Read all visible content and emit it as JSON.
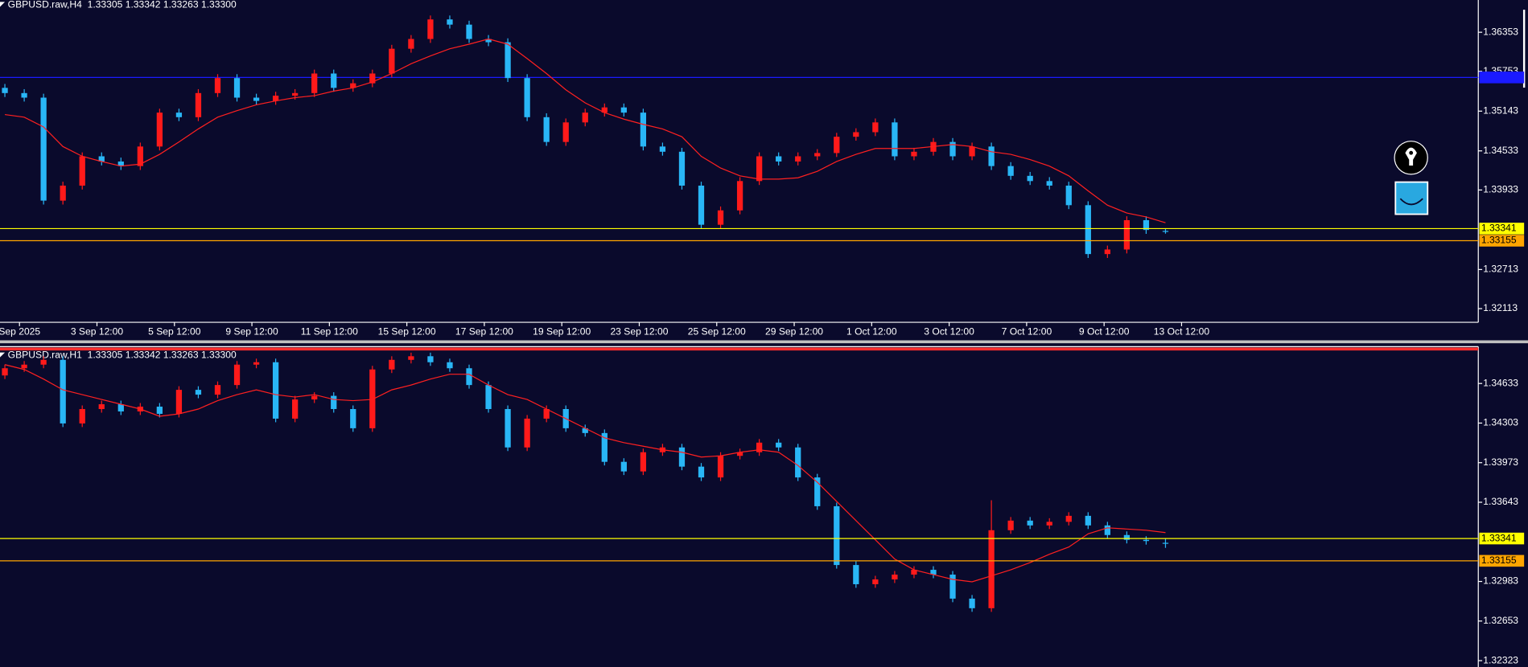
{
  "panels": [
    {
      "header": "GBPUSD.raw,H4  1.33305 1.33342 1.33263 1.33300",
      "ylim": [
        1.31903,
        1.36848
      ],
      "yticks": [
        1.36353,
        1.35753,
        1.35143,
        1.34533,
        1.33933,
        1.32713,
        1.32113
      ],
      "xlabels": [
        "Sep 2025",
        "3 Sep 12:00",
        "5 Sep 12:00",
        "9 Sep 12:00",
        "11 Sep 12:00",
        "15 Sep 12:00",
        "17 Sep 12:00",
        "19 Sep 12:00",
        "23 Sep 12:00",
        "25 Sep 12:00",
        "29 Sep 12:00",
        "1 Oct 12:00",
        "3 Oct 12:00",
        "7 Oct 12:00",
        "9 Oct 12:00",
        "13 Oct 12:00"
      ],
      "levels": [
        {
          "price": 1.33341,
          "color": "#ffff00"
        },
        {
          "price": 1.33155,
          "color": "#ffa500"
        }
      ],
      "lines": [
        {
          "price": 1.3566,
          "color": "#1a1aff"
        }
      ],
      "up_color": "#ff1a1a",
      "down_color": "#29b6f6",
      "ma_color": "#ff2020",
      "open": [
        1.355,
        1.3542,
        1.3535,
        1.3377,
        1.34,
        1.3445,
        1.3437,
        1.343,
        1.346,
        1.3512,
        1.3505,
        1.3542,
        1.3565,
        1.3535,
        1.353,
        1.3538,
        1.3542,
        1.3572,
        1.355,
        1.3557,
        1.3572,
        1.361,
        1.3625,
        1.3655,
        1.3647,
        1.3625,
        1.362,
        1.3565,
        1.3505,
        1.3467,
        1.3497,
        1.3512,
        1.352,
        1.3512,
        1.346,
        1.3452,
        1.34,
        1.334,
        1.3362,
        1.3407,
        1.3445,
        1.3437,
        1.3445,
        1.345,
        1.3475,
        1.3482,
        1.3497,
        1.3445,
        1.3452,
        1.3467,
        1.3445,
        1.346,
        1.343,
        1.3415,
        1.3407,
        1.34,
        1.337,
        1.3295,
        1.3302,
        1.3347,
        1.33305
      ],
      "high": [
        1.3556,
        1.3548,
        1.3541,
        1.3406,
        1.3451,
        1.3451,
        1.3443,
        1.3466,
        1.3518,
        1.3518,
        1.3548,
        1.3571,
        1.3571,
        1.3541,
        1.3544,
        1.3548,
        1.3578,
        1.3578,
        1.3563,
        1.3578,
        1.3616,
        1.3631,
        1.3661,
        1.3661,
        1.3653,
        1.3631,
        1.3626,
        1.3571,
        1.3511,
        1.3503,
        1.3518,
        1.3526,
        1.3526,
        1.3518,
        1.3466,
        1.3458,
        1.3406,
        1.3368,
        1.3413,
        1.3451,
        1.3451,
        1.3451,
        1.3456,
        1.3481,
        1.3488,
        1.3503,
        1.3503,
        1.3458,
        1.3473,
        1.3473,
        1.3466,
        1.3466,
        1.3436,
        1.3421,
        1.3413,
        1.3406,
        1.3376,
        1.3308,
        1.3353,
        1.3353,
        1.33342
      ],
      "low": [
        1.3536,
        1.3529,
        1.3371,
        1.3371,
        1.3394,
        1.3431,
        1.3424,
        1.3424,
        1.3454,
        1.3499,
        1.3499,
        1.3536,
        1.3529,
        1.3524,
        1.3524,
        1.3532,
        1.3536,
        1.3544,
        1.3544,
        1.3551,
        1.3566,
        1.3604,
        1.3619,
        1.3641,
        1.3619,
        1.3614,
        1.3559,
        1.3499,
        1.3461,
        1.3461,
        1.3491,
        1.3506,
        1.3506,
        1.3454,
        1.3446,
        1.3394,
        1.3334,
        1.3334,
        1.3356,
        1.3401,
        1.3431,
        1.3431,
        1.3439,
        1.3444,
        1.3469,
        1.3476,
        1.3439,
        1.3439,
        1.3446,
        1.3439,
        1.3439,
        1.3424,
        1.3409,
        1.3401,
        1.3394,
        1.3364,
        1.3289,
        1.3289,
        1.3296,
        1.3326,
        1.33263
      ],
      "close": [
        1.3542,
        1.3535,
        1.3377,
        1.34,
        1.3445,
        1.3437,
        1.343,
        1.346,
        1.3512,
        1.3505,
        1.3542,
        1.3565,
        1.3535,
        1.353,
        1.3538,
        1.3542,
        1.3572,
        1.355,
        1.3557,
        1.3572,
        1.361,
        1.3625,
        1.3655,
        1.3647,
        1.3625,
        1.362,
        1.3565,
        1.3505,
        1.3467,
        1.3497,
        1.3512,
        1.352,
        1.3512,
        1.346,
        1.3452,
        1.34,
        1.334,
        1.3362,
        1.3407,
        1.3445,
        1.3437,
        1.3445,
        1.345,
        1.3475,
        1.3482,
        1.3497,
        1.3445,
        1.3452,
        1.3467,
        1.3445,
        1.346,
        1.343,
        1.3415,
        1.3407,
        1.34,
        1.337,
        1.3295,
        1.3302,
        1.3347,
        1.3332,
        1.333
      ],
      "ma": [
        1.3509,
        1.3505,
        1.349,
        1.346,
        1.3445,
        1.3437,
        1.343,
        1.3433,
        1.3448,
        1.3467,
        1.3487,
        1.3505,
        1.3515,
        1.3524,
        1.353,
        1.3535,
        1.3538,
        1.3545,
        1.355,
        1.3559,
        1.3572,
        1.3587,
        1.3599,
        1.361,
        1.3617,
        1.3625,
        1.3617,
        1.3595,
        1.3572,
        1.3547,
        1.3527,
        1.3512,
        1.3502,
        1.3494,
        1.3487,
        1.3475,
        1.3445,
        1.3427,
        1.3415,
        1.341,
        1.341,
        1.3412,
        1.3422,
        1.3437,
        1.3448,
        1.3457,
        1.3457,
        1.3457,
        1.346,
        1.3463,
        1.346,
        1.3452,
        1.3448,
        1.344,
        1.343,
        1.3415,
        1.3392,
        1.337,
        1.3358,
        1.3352,
        1.3343
      ]
    },
    {
      "header": "GBPUSD.raw,H1  1.33305 1.33342 1.33263 1.33300",
      "ylim": [
        1.3227,
        1.3494
      ],
      "yticks": [
        1.34633,
        1.34303,
        1.33973,
        1.33643,
        1.32983,
        1.32653,
        1.32323
      ],
      "levels": [
        {
          "price": 1.33341,
          "color": "#ffff00"
        },
        {
          "price": 1.33155,
          "color": "#ffa500"
        }
      ],
      "lines": [
        {
          "price": 1.3492,
          "color": "#ff3030"
        }
      ],
      "up_color": "#ff1a1a",
      "down_color": "#29b6f6",
      "ma_color": "#ff2020",
      "open": [
        1.347,
        1.3476,
        1.3479,
        1.3483,
        1.343,
        1.3442,
        1.3446,
        1.344,
        1.3444,
        1.3438,
        1.3458,
        1.3454,
        1.3462,
        1.3479,
        1.3481,
        1.3434,
        1.345,
        1.3453,
        1.3442,
        1.3426,
        1.3475,
        1.3483,
        1.3486,
        1.3481,
        1.3476,
        1.3462,
        1.3442,
        1.341,
        1.3434,
        1.3442,
        1.3426,
        1.3422,
        1.3398,
        1.339,
        1.3406,
        1.341,
        1.3394,
        1.3385,
        1.3403,
        1.3406,
        1.3414,
        1.341,
        1.3385,
        1.3361,
        1.3312,
        1.3296,
        1.33,
        1.3304,
        1.3308,
        1.3304,
        1.3284,
        1.3276,
        1.3341,
        1.3349,
        1.3345,
        1.3348,
        1.3353,
        1.3345,
        1.3337,
        1.3333,
        1.33305
      ],
      "high": [
        1.3479,
        1.3482,
        1.3486,
        1.3486,
        1.3445,
        1.3449,
        1.3449,
        1.3447,
        1.3447,
        1.3461,
        1.3461,
        1.3465,
        1.3482,
        1.3484,
        1.3484,
        1.3453,
        1.3456,
        1.3456,
        1.3445,
        1.3478,
        1.3486,
        1.3489,
        1.3489,
        1.3484,
        1.3479,
        1.3465,
        1.3445,
        1.3437,
        1.3445,
        1.3445,
        1.3429,
        1.3425,
        1.3401,
        1.3409,
        1.3413,
        1.3413,
        1.3397,
        1.3406,
        1.3409,
        1.3417,
        1.3417,
        1.3413,
        1.3388,
        1.3364,
        1.3315,
        1.3303,
        1.3307,
        1.3311,
        1.3311,
        1.3307,
        1.3287,
        1.3366,
        1.3352,
        1.3352,
        1.3351,
        1.3356,
        1.3356,
        1.3348,
        1.334,
        1.3336,
        1.33342
      ],
      "low": [
        1.3467,
        1.3473,
        1.3476,
        1.3427,
        1.3427,
        1.3439,
        1.3437,
        1.3437,
        1.3435,
        1.3435,
        1.3451,
        1.3451,
        1.3459,
        1.3476,
        1.3431,
        1.3431,
        1.3447,
        1.3439,
        1.3423,
        1.3423,
        1.3472,
        1.348,
        1.3478,
        1.3473,
        1.3459,
        1.3439,
        1.3407,
        1.3407,
        1.3431,
        1.3423,
        1.3419,
        1.3395,
        1.3387,
        1.3387,
        1.3403,
        1.3391,
        1.3382,
        1.3382,
        1.34,
        1.3403,
        1.3407,
        1.3382,
        1.3358,
        1.3309,
        1.3293,
        1.3293,
        1.3297,
        1.3301,
        1.3301,
        1.3281,
        1.3273,
        1.3273,
        1.3338,
        1.3342,
        1.3342,
        1.3345,
        1.3342,
        1.3334,
        1.333,
        1.3329,
        1.33263
      ],
      "close": [
        1.3476,
        1.3479,
        1.3483,
        1.343,
        1.3442,
        1.3446,
        1.344,
        1.3444,
        1.3438,
        1.3458,
        1.3454,
        1.3462,
        1.3479,
        1.3481,
        1.3434,
        1.345,
        1.3453,
        1.3442,
        1.3426,
        1.3475,
        1.3483,
        1.3486,
        1.3481,
        1.3476,
        1.3462,
        1.3442,
        1.341,
        1.3434,
        1.3442,
        1.3426,
        1.3422,
        1.3398,
        1.339,
        1.3406,
        1.341,
        1.3394,
        1.3385,
        1.3403,
        1.3406,
        1.3414,
        1.341,
        1.3385,
        1.3361,
        1.3312,
        1.3296,
        1.33,
        1.3304,
        1.3308,
        1.3304,
        1.3284,
        1.3276,
        1.3341,
        1.3349,
        1.3345,
        1.3348,
        1.3353,
        1.3345,
        1.3337,
        1.3333,
        1.3332,
        1.333
      ],
      "ma": [
        1.3479,
        1.3475,
        1.3467,
        1.3458,
        1.3454,
        1.345,
        1.3446,
        1.3442,
        1.3436,
        1.3438,
        1.3442,
        1.3449,
        1.3454,
        1.3458,
        1.3454,
        1.3452,
        1.3454,
        1.345,
        1.3449,
        1.345,
        1.3458,
        1.3462,
        1.3467,
        1.3471,
        1.3471,
        1.3462,
        1.3454,
        1.345,
        1.3442,
        1.3434,
        1.3426,
        1.3418,
        1.3414,
        1.3411,
        1.3408,
        1.3406,
        1.3402,
        1.3403,
        1.3406,
        1.3408,
        1.3406,
        1.3395,
        1.3381,
        1.3365,
        1.3349,
        1.3333,
        1.3317,
        1.3308,
        1.3304,
        1.33,
        1.3298,
        1.3303,
        1.3308,
        1.3314,
        1.3321,
        1.3327,
        1.3338,
        1.3343,
        1.3342,
        1.3341,
        1.3339
      ]
    }
  ]
}
